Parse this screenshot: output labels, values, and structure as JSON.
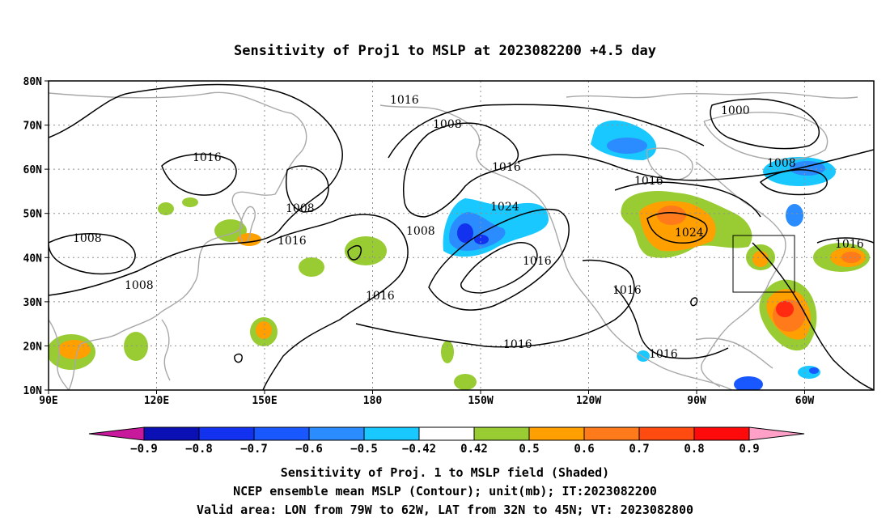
{
  "title": "Sensitivity of Proj1 to MSLP at 2023082200 +4.5 day",
  "lat_ticks": [
    "80N",
    "70N",
    "60N",
    "50N",
    "40N",
    "30N",
    "20N",
    "10N"
  ],
  "lon_ticks": [
    "90E",
    "120E",
    "150E",
    "180",
    "150W",
    "120W",
    "90W",
    "60W"
  ],
  "contour_labels": [
    "1016",
    "1008",
    "1016",
    "1008",
    "1016",
    "1016",
    "1000",
    "1008",
    "1008",
    "1016",
    "1024",
    "1016",
    "1008",
    "1024",
    "1016",
    "1008",
    "1016",
    "1016",
    "1016",
    "1016"
  ],
  "colorbar": {
    "labels": [
      "−0.9",
      "−0.8",
      "−0.7",
      "−0.6",
      "−0.5",
      "−0.42",
      "0.42",
      "0.5",
      "0.6",
      "0.7",
      "0.8",
      "0.9"
    ],
    "colors": {
      "below_min": "#c8189c",
      "bins": [
        "#0a10b4",
        "#1232f0",
        "#1a58ff",
        "#2a8cff",
        "#19c8ff",
        "#ffffff",
        "#98cc32",
        "#ffa000",
        "#ff7a1a",
        "#ff4a10",
        "#ff0a0a"
      ],
      "above_max": "#ffa0c8"
    }
  },
  "footer": [
    "Sensitivity of Proj. 1 to MSLP field (Shaded)",
    "NCEP ensemble mean MSLP (Contour); unit(mb); IT:2023082200",
    "Valid area: LON from 79W to 62W, LAT from 32N to 45N; VT: 2023082800"
  ],
  "map_colors": {
    "coastline": "#a8a8a8",
    "contour": "#000000",
    "grid": "#909090",
    "green": "#98cc32",
    "orange": "#ffa000",
    "dark_orange": "#ff7a1a",
    "red": "#ff2a10",
    "cyan": "#19c8ff",
    "blue": "#2a8cff",
    "deep_blue": "#1232f0"
  }
}
